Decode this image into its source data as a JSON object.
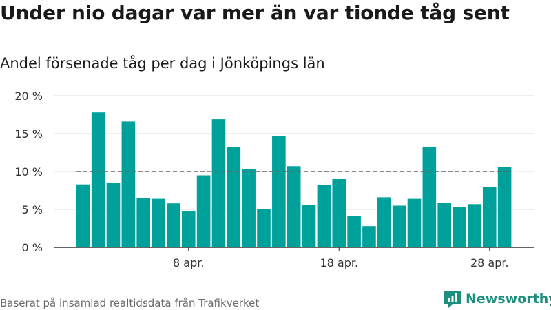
{
  "title": "Under nio dagar var mer än var tionde tåg sent",
  "subtitle": "Andel försenade tåg per dag i Jönköpings län",
  "footer": "Baserat på insamlad realtidsdata från Trafikverket",
  "brand": {
    "name": "Newsworthy",
    "icon": "newsworthy-logo-icon",
    "color": "#1c8f7e"
  },
  "colors": {
    "bar": "#00a19a",
    "grid": "#dddddd",
    "reference": "#666666",
    "axis": "#333333"
  },
  "chart_data": {
    "type": "bar",
    "title": "Andel försenade tåg per dag i Jönköpings län",
    "xlabel": "",
    "ylabel": "",
    "x": [
      "2024-04-01",
      "2024-04-02",
      "2024-04-03",
      "2024-04-04",
      "2024-04-05",
      "2024-04-06",
      "2024-04-07",
      "2024-04-08",
      "2024-04-09",
      "2024-04-10",
      "2024-04-11",
      "2024-04-12",
      "2024-04-13",
      "2024-04-14",
      "2024-04-15",
      "2024-04-16",
      "2024-04-17",
      "2024-04-18",
      "2024-04-19",
      "2024-04-20",
      "2024-04-21",
      "2024-04-22",
      "2024-04-23",
      "2024-04-24",
      "2024-04-25",
      "2024-04-26",
      "2024-04-27",
      "2024-04-28",
      "2024-04-29"
    ],
    "values": [
      8.3,
      17.8,
      8.5,
      16.6,
      6.5,
      6.4,
      5.8,
      4.8,
      9.5,
      16.9,
      13.2,
      10.3,
      5.0,
      14.7,
      10.7,
      5.6,
      8.2,
      9.0,
      4.1,
      2.8,
      6.6,
      5.5,
      6.4,
      13.2,
      5.9,
      5.3,
      5.7,
      8.0,
      10.6
    ],
    "unit": "%",
    "ylim": [
      0,
      20
    ],
    "yticks": [
      0,
      5,
      10,
      15,
      20
    ],
    "ytick_labels": [
      "0 %",
      "5 %",
      "10 %",
      "15 %",
      "20 %"
    ],
    "xticks": [
      {
        "x": "2024-04-08",
        "label": "8 apr."
      },
      {
        "x": "2024-04-18",
        "label": "18 apr."
      },
      {
        "x": "2024-04-28",
        "label": "28 apr."
      }
    ],
    "reference_line": {
      "value": 10,
      "style": "dashed"
    },
    "grid": true,
    "legend": "none"
  }
}
